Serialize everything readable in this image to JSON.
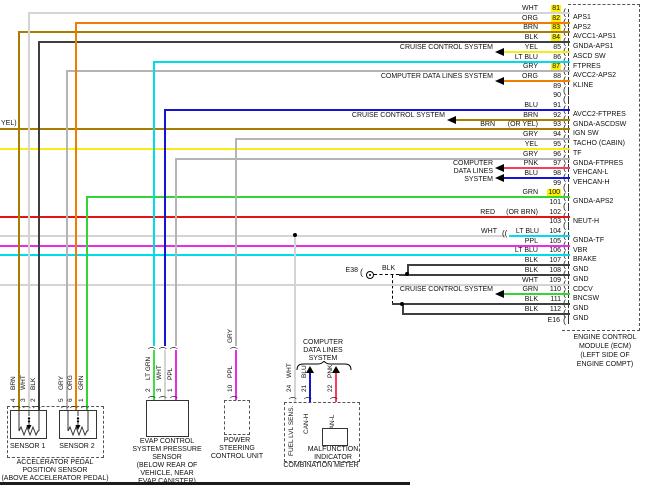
{
  "colors": {
    "WHT": "#d4d4d4",
    "ORG": "#f07d00",
    "BRN": "#a87d00",
    "BLK": "#3f3f3f",
    "YEL": "#f7ec13",
    "LT BLU": "#00dcec",
    "GRY": "#b4b4b4",
    "BLU": "#1414d2",
    "PNK": "#fb3b5e",
    "GRN": "#35d435",
    "LT GRN": "#44dc44",
    "RED": "#e41414",
    "PPL": "#e52ee5",
    "highlight": "#ffef00"
  },
  "left_edge_label": "YEL)",
  "references": {
    "cruise": "CRUISE CONTROL SYSTEM",
    "data_lines": "COMPUTER DATA LINES SYSTEM",
    "data_lines_stacked": [
      "COMPUTER",
      "DATA LINES",
      "SYSTEM"
    ]
  },
  "ground": {
    "label": "E38",
    "wire_color_label": "BLK"
  },
  "ecm": {
    "connector_label": "E16",
    "caption": [
      "ENGINE CONTROL",
      "MODULE (ECM)",
      "(LEFT SIDE OF",
      "ENGINE COMPT)"
    ],
    "pins": [
      {
        "num": "81",
        "color": "WHT",
        "name": "APS1",
        "hl": true
      },
      {
        "num": "82",
        "color": "ORG",
        "name": "APS2",
        "hl": true
      },
      {
        "num": "83",
        "color": "BRN",
        "name": "AVCC1-APS1",
        "hl": true
      },
      {
        "num": "84",
        "color": "BLK",
        "name": "GNDA-APS1",
        "hl": true
      },
      {
        "num": "85",
        "color": "YEL",
        "name": "ASCD SW"
      },
      {
        "num": "86",
        "color": "LT BLU",
        "name": "FTPRES"
      },
      {
        "num": "87",
        "color": "GRY",
        "name": "AVCC2-APS2",
        "hl": true
      },
      {
        "num": "88",
        "color": "ORG",
        "name": "KLINE"
      },
      {
        "num": "89",
        "color": "",
        "name": ""
      },
      {
        "num": "90",
        "color": "",
        "name": ""
      },
      {
        "num": "91",
        "color": "BLU",
        "name": "AVCC2-FTPRES"
      },
      {
        "num": "92",
        "color": "BRN",
        "name": "GNDA-ASCDSW"
      },
      {
        "num": "93",
        "color": "BRN",
        "alt": "(OR YEL)",
        "name": "IGN SW"
      },
      {
        "num": "94",
        "color": "GRY",
        "name": "TACHO (CABIN)"
      },
      {
        "num": "95",
        "color": "YEL",
        "name": "TF"
      },
      {
        "num": "96",
        "color": "GRY",
        "name": "GNDA-FTPRES"
      },
      {
        "num": "97",
        "color": "PNK",
        "name": "VEHCAN-L"
      },
      {
        "num": "98",
        "color": "BLU",
        "name": "VEHCAN-H"
      },
      {
        "num": "99",
        "color": "",
        "name": ""
      },
      {
        "num": "100",
        "color": "GRN",
        "name": "GNDA-APS2",
        "hl": true
      },
      {
        "num": "101",
        "color": "",
        "name": ""
      },
      {
        "num": "102",
        "color": "RED",
        "alt": "(OR BRN)",
        "name": "NEUT-H"
      },
      {
        "num": "103",
        "color": "",
        "name": ""
      },
      {
        "num": "104",
        "color": "LT BLU",
        "pre": "WHT",
        "conn": "((",
        "name": "GNDA-TF"
      },
      {
        "num": "105",
        "color": "PPL",
        "name": "VBR"
      },
      {
        "num": "106",
        "color": "LT BLU",
        "name": "BRAKE"
      },
      {
        "num": "107",
        "color": "BLK",
        "name": "GND"
      },
      {
        "num": "108",
        "color": "BLK",
        "name": "GND"
      },
      {
        "num": "109",
        "color": "WHT",
        "name": "CDCV"
      },
      {
        "num": "110",
        "color": "GRN",
        "name": "BNCSW"
      },
      {
        "num": "111",
        "color": "BLK",
        "name": "GND"
      },
      {
        "num": "112",
        "color": "BLK",
        "name": "GND"
      }
    ]
  },
  "pedal_sensor": {
    "caption": [
      "ACCELERATOR PEDAL",
      "POSITION SENSOR",
      "(ABOVE ACCELERATOR PEDAL)"
    ],
    "sensor1_label": "SENSOR 1",
    "sensor2_label": "SENSOR 2",
    "pins": [
      {
        "num": "4",
        "color": "BRN"
      },
      {
        "num": "3",
        "color": "WHT"
      },
      {
        "num": "2",
        "color": "BLK"
      },
      {
        "num": "5",
        "color": "GRY"
      },
      {
        "num": "6",
        "color": "ORG"
      },
      {
        "num": "1",
        "color": "GRN"
      }
    ]
  },
  "evap_sensor": {
    "caption": [
      "EVAP CONTROL",
      "SYSTEM PRESSURE",
      "SENSOR",
      "(BELOW REAR OF",
      "VEHICLE, NEAR",
      "EVAP CANISTER)"
    ],
    "pins": [
      {
        "num": "2",
        "color": "LT GRN"
      },
      {
        "num": "3",
        "color": "WHT"
      },
      {
        "num": "1",
        "color": "PPL"
      }
    ]
  },
  "power_steering": {
    "caption": [
      "POWER",
      "STEERING",
      "CONTROL UNIT"
    ],
    "upper_wire_label": "GRY",
    "pins": [
      {
        "num": "10",
        "color": "PPL"
      }
    ]
  },
  "combination_meter": {
    "caption": "COMBINATION METER",
    "mil_label": [
      "MALFUNCTION",
      "INDICATOR"
    ],
    "internal_labels": [
      "FUEL LVL SENS.",
      "CAN-H",
      "CAN-L"
    ],
    "pins": [
      {
        "num": "24",
        "color": "WHT"
      },
      {
        "num": "21",
        "color": "BLU"
      },
      {
        "num": "22",
        "color": "PNK"
      }
    ]
  }
}
